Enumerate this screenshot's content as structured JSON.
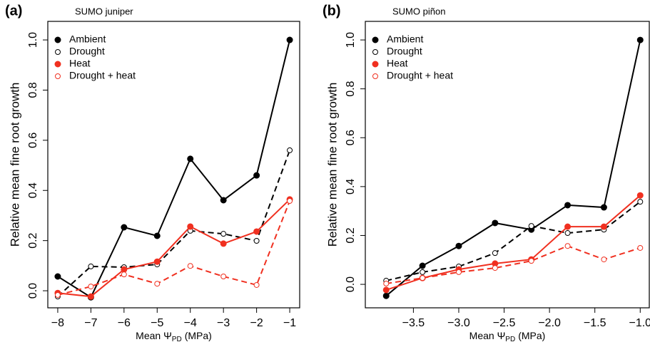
{
  "chart_data": [
    {
      "type": "line",
      "panel_label": "(a)",
      "title": "SUMO juniper",
      "x_label": {
        "text": "Mean Ψ",
        "subscript": "PD",
        "unit": "(MPa)"
      },
      "y_label": "Relative mean  fine root growth",
      "x": [
        -8,
        -7,
        -6,
        -5,
        -4,
        -3,
        -2,
        -1
      ],
      "xlim": [
        -8.3,
        -0.7
      ],
      "ylim": [
        -0.068,
        1.074
      ],
      "xticks": [
        {
          "value": -8,
          "label": "−8"
        },
        {
          "value": -7,
          "label": "−7"
        },
        {
          "value": -6,
          "label": "−6"
        },
        {
          "value": -5,
          "label": "−5"
        },
        {
          "value": -4,
          "label": "−4"
        },
        {
          "value": -3,
          "label": "−3"
        },
        {
          "value": -2,
          "label": "−2"
        },
        {
          "value": -1,
          "label": "−1"
        }
      ],
      "yticks": [
        {
          "value": 0,
          "label": "0.0"
        },
        {
          "value": 0.2,
          "label": "0.2"
        },
        {
          "value": 0.4,
          "label": "0.4"
        },
        {
          "value": 0.6,
          "label": "0.6"
        },
        {
          "value": 0.8,
          "label": "0.8"
        },
        {
          "value": 1,
          "label": "1.0"
        }
      ],
      "legend": "top-left",
      "series": [
        {
          "name": "Ambient",
          "color": "#000000",
          "dashed": false,
          "marker": "filled",
          "values": [
            0.057,
            -0.026,
            0.253,
            0.219,
            0.526,
            0.361,
            0.46,
            1.0
          ]
        },
        {
          "name": "Drought",
          "color": "#000000",
          "dashed": true,
          "marker": "open",
          "values": [
            -0.023,
            0.097,
            0.094,
            0.105,
            0.239,
            0.227,
            0.199,
            0.56
          ]
        },
        {
          "name": "Heat",
          "color": "#f03020",
          "dashed": false,
          "marker": "filled",
          "values": [
            -0.009,
            -0.023,
            0.085,
            0.116,
            0.256,
            0.188,
            0.236,
            0.364
          ]
        },
        {
          "name": "Drought + heat",
          "color": "#f03020",
          "dashed": true,
          "marker": "open",
          "values": [
            -0.017,
            0.017,
            0.065,
            0.028,
            0.099,
            0.057,
            0.023,
            0.358
          ]
        }
      ]
    },
    {
      "type": "line",
      "panel_label": "(b)",
      "title": "SUMO piñon",
      "x_label": {
        "text": "Mean Ψ",
        "subscript": "PD",
        "unit": "(MPa)"
      },
      "y_label": "Relative mean  fine root growth",
      "x": [
        -3.8,
        -3.4,
        -3.0,
        -2.6,
        -2.2,
        -1.8,
        -1.4,
        -1.0
      ],
      "xlim": [
        -4.03,
        -0.9
      ],
      "ylim": [
        -0.096,
        1.076
      ],
      "xticks": [
        {
          "value": -3.5,
          "label": "−3.5"
        },
        {
          "value": -3.0,
          "label": "−3.0"
        },
        {
          "value": -2.5,
          "label": "−2.5"
        },
        {
          "value": -2.0,
          "label": "−2.0"
        },
        {
          "value": -1.5,
          "label": "−1.5"
        },
        {
          "value": -1.0,
          "label": "−1.0"
        }
      ],
      "yticks": [
        {
          "value": 0,
          "label": "0.0"
        },
        {
          "value": 0.2,
          "label": "0.2"
        },
        {
          "value": 0.4,
          "label": "0.4"
        },
        {
          "value": 0.6,
          "label": "0.6"
        },
        {
          "value": 0.8,
          "label": "0.8"
        },
        {
          "value": 1,
          "label": "1.0"
        }
      ],
      "legend": "top-left",
      "series": [
        {
          "name": "Ambient",
          "color": "#000000",
          "dashed": false,
          "marker": "filled",
          "values": [
            -0.047,
            0.076,
            0.157,
            0.251,
            0.224,
            0.324,
            0.315,
            1.0
          ]
        },
        {
          "name": "Drought",
          "color": "#000000",
          "dashed": true,
          "marker": "open",
          "values": [
            0.015,
            0.05,
            0.073,
            0.128,
            0.239,
            0.21,
            0.224,
            0.338
          ]
        },
        {
          "name": "Heat",
          "color": "#f03020",
          "dashed": false,
          "marker": "filled",
          "values": [
            -0.023,
            0.026,
            0.061,
            0.085,
            0.102,
            0.236,
            0.236,
            0.364
          ]
        },
        {
          "name": "Drought + heat",
          "color": "#f03020",
          "dashed": true,
          "marker": "open",
          "values": [
            0.003,
            0.026,
            0.05,
            0.067,
            0.096,
            0.157,
            0.102,
            0.149
          ]
        }
      ]
    }
  ]
}
